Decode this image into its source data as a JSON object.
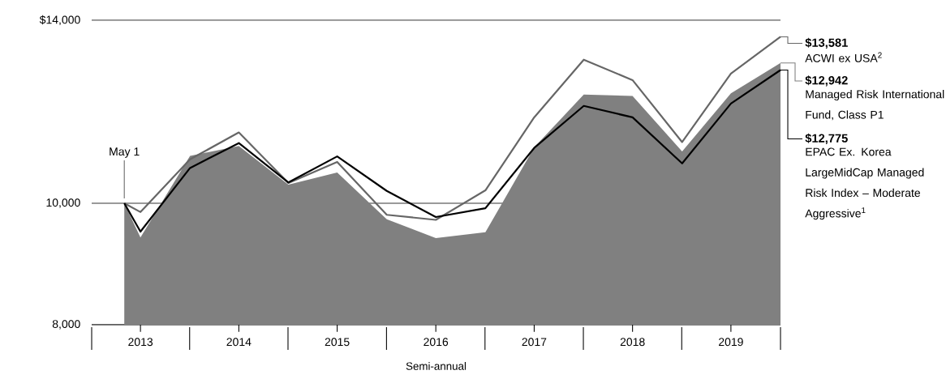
{
  "chart_data": {
    "type": "line",
    "xlabel": "Semi-annual",
    "log": "y",
    "grid": "y",
    "x": [
      "2013-05-01",
      "2013-06-30",
      "2013-12-31",
      "2014-06-30",
      "2014-12-31",
      "2015-06-30",
      "2015-12-31",
      "2016-06-30",
      "2016-12-31",
      "2017-06-30",
      "2017-12-31",
      "2018-06-30",
      "2018-12-31",
      "2019-06-30",
      "2019-12-31"
    ],
    "xlim": [
      "2012-12-31",
      "2019-12-31"
    ],
    "xticks": [
      {
        "value": "2013-06-30",
        "label": "2013"
      },
      {
        "value": "2014-06-30",
        "label": "2014"
      },
      {
        "value": "2015-06-30",
        "label": "2015"
      },
      {
        "value": "2016-06-30",
        "label": "2016"
      },
      {
        "value": "2017-06-30",
        "label": "2017"
      },
      {
        "value": "2018-06-30",
        "label": "2018"
      },
      {
        "value": "2019-06-30",
        "label": "2019"
      }
    ],
    "ylim": [
      8000,
      14000
    ],
    "yticks": [
      {
        "value": 8000,
        "label": "8,000"
      },
      {
        "value": 10000,
        "label": "10,000"
      },
      {
        "value": 14000,
        "label": "$14,000"
      }
    ],
    "series": [
      {
        "name": "ACWI ex USA$^{2}$",
        "color": "#666666",
        "values": [
          10000,
          9840,
          10840,
          11390,
          10380,
          10790,
          9790,
          9700,
          10240,
          11710,
          13020,
          12540,
          11190,
          12690,
          13581
        ],
        "value_labels": [
          null,
          null,
          null,
          null,
          null,
          null,
          null,
          null,
          null,
          null,
          null,
          null,
          null,
          null,
          "$13,581"
        ]
      },
      {
        "name": "Managed Risk International Fund, Class P1",
        "type": "area",
        "color": "#808080",
        "values": [
          10000,
          9390,
          10910,
          11110,
          10350,
          10580,
          9710,
          9380,
          9480,
          11080,
          12210,
          12180,
          11000,
          12240,
          12942
        ],
        "value_labels": [
          null,
          null,
          null,
          null,
          null,
          null,
          null,
          null,
          null,
          null,
          null,
          null,
          null,
          null,
          "$12,942"
        ]
      },
      {
        "name": "EPAC Ex. Korea LargeMidCap Managed Risk Index – Moderate Aggressive$^{1}$",
        "color": "#000000",
        "values": [
          10000,
          9493,
          10670,
          11170,
          10390,
          10900,
          10230,
          9750,
          9910,
          11070,
          11960,
          11710,
          10760,
          12010,
          12775
        ],
        "value_labels": [
          null,
          null,
          null,
          null,
          null,
          null,
          null,
          null,
          null,
          null,
          null,
          null,
          null,
          null,
          "$12,775"
        ]
      }
    ],
    "annotations": [
      {
        "text": "May 1",
        "x": "2013-05-01",
        "y": 10000
      }
    ]
  }
}
